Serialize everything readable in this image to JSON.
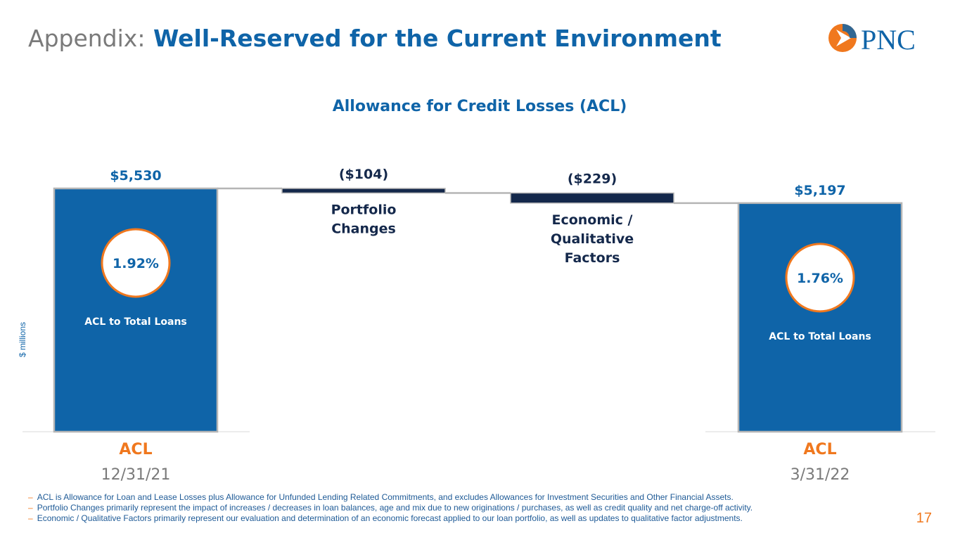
{
  "slide": {
    "title_prefix": "Appendix:",
    "title_main": "Well-Reserved for the Current Environment",
    "logo_text": "PNC",
    "page_number": "17"
  },
  "colors": {
    "brand_blue": "#0f64a8",
    "dark_navy": "#14284b",
    "orange": "#f0781e",
    "gray_text": "#7a7a7a"
  },
  "icons": {
    "logo": "pnc-logo-icon"
  },
  "chart_data": {
    "type": "waterfall",
    "title": "Allowance for Credit Losses (ACL)",
    "ylabel": "$ millions",
    "ylim": [
      0,
      5530
    ],
    "grid": false,
    "bars": [
      {
        "kind": "total",
        "value": 5530,
        "value_label": "$5,530",
        "category_top": "ACL",
        "category_bottom": "12/31/21",
        "ratio": "1.92%",
        "ratio_label": "ACL to Total Loans"
      },
      {
        "kind": "delta",
        "value": -104,
        "value_label": "($104)",
        "label_lines": [
          "Portfolio",
          "Changes"
        ]
      },
      {
        "kind": "delta",
        "value": -229,
        "value_label": "($229)",
        "label_lines": [
          "Economic /",
          "Qualitative",
          "Factors"
        ]
      },
      {
        "kind": "total",
        "value": 5197,
        "value_label": "$5,197",
        "category_top": "ACL",
        "category_bottom": "3/31/22",
        "ratio": "1.76%",
        "ratio_label": "ACL to Total Loans"
      }
    ]
  },
  "footnotes": [
    "ACL is Allowance for Loan and Lease Losses plus Allowance for Unfunded Lending Related Commitments, and excludes Allowances for Investment Securities and Other Financial Assets.",
    "Portfolio Changes primarily represent the impact of increases / decreases in loan balances, age and mix due to new originations / purchases, as well as credit quality and net charge-off activity.",
    "Economic / Qualitative Factors primarily represent our evaluation and determination of an economic forecast applied to our loan portfolio, as well as updates to qualitative factor adjustments."
  ]
}
